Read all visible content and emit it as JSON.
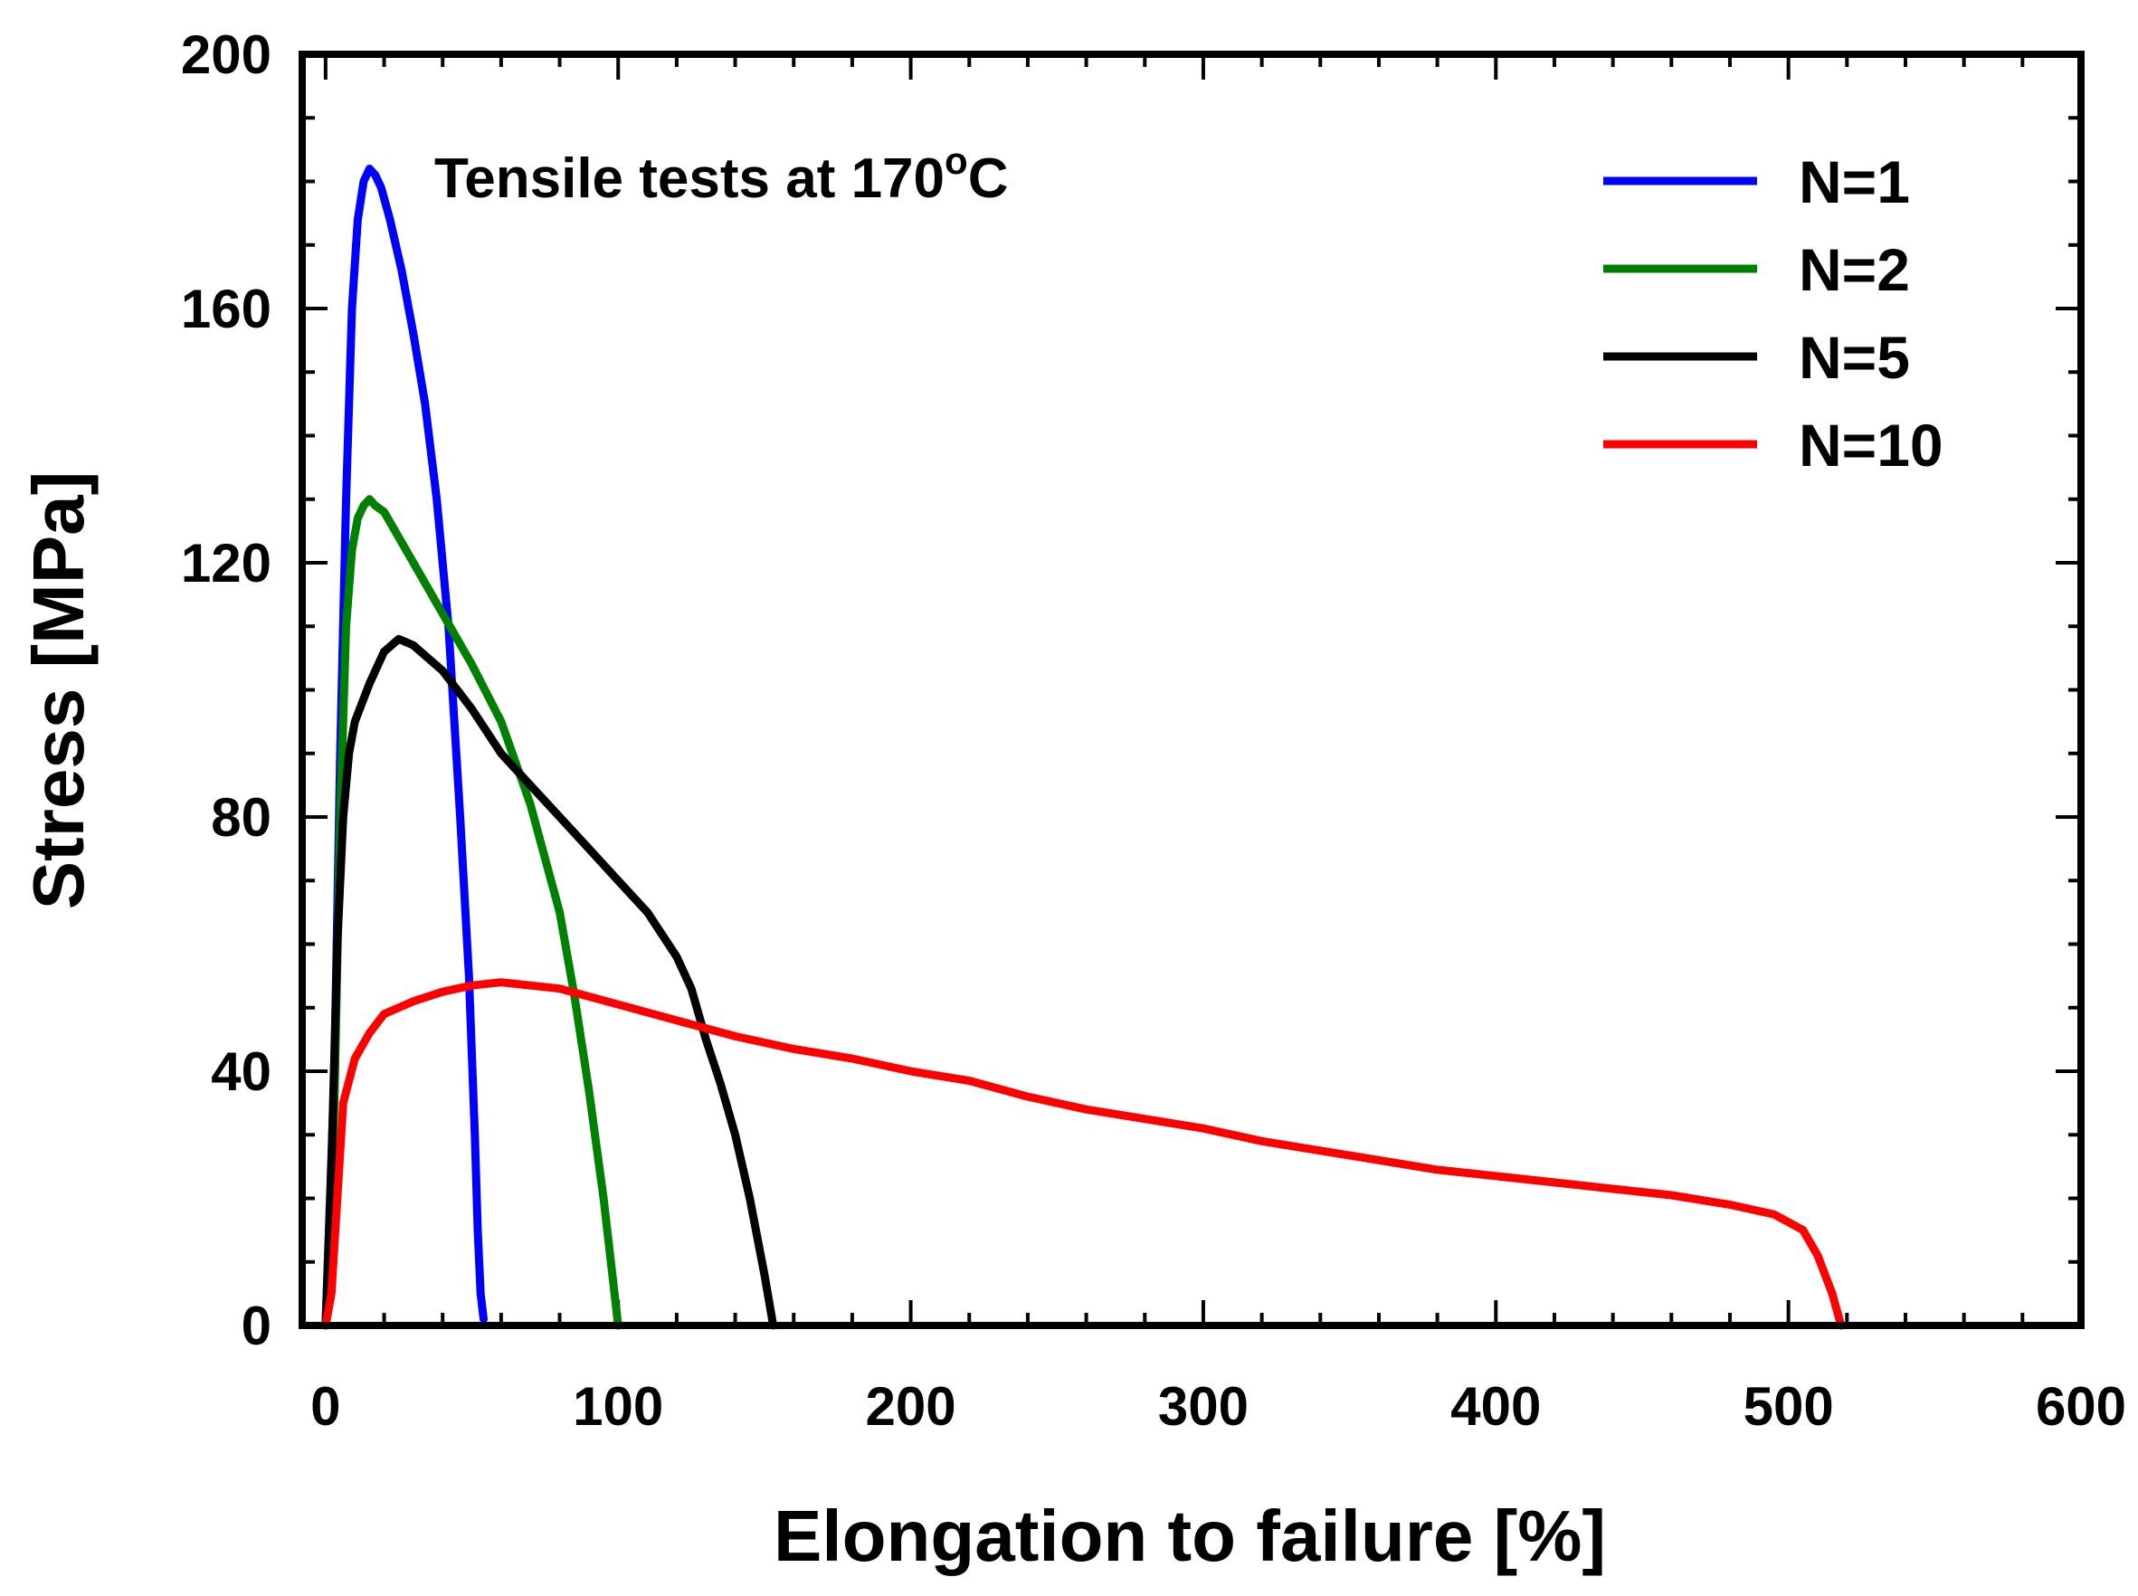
{
  "chart_data": {
    "type": "line",
    "title": "",
    "annotation": {
      "prefix": "Tensile tests at 170",
      "superscript": "o",
      "suffix": "C"
    },
    "xlabel": "Elongation to failure [%]",
    "ylabel": "Stress [MPa]",
    "xlim": [
      -8,
      600
    ],
    "ylim": [
      0,
      200
    ],
    "xticks": [
      0,
      100,
      200,
      300,
      400,
      500,
      600
    ],
    "yticks": [
      0,
      40,
      80,
      120,
      160,
      200
    ],
    "grid": false,
    "legend_position": "top-right",
    "series": [
      {
        "name": "N=1",
        "color": "#0000ff",
        "x": [
          0,
          3,
          5,
          7,
          9,
          11,
          13,
          15,
          17,
          19,
          22,
          26,
          30,
          34,
          38,
          42,
          46,
          49,
          51,
          52,
          53,
          54
        ],
        "y": [
          0,
          40,
          90,
          130,
          160,
          174,
          180,
          182,
          181,
          179,
          174,
          166,
          156,
          145,
          130,
          110,
          80,
          55,
          30,
          15,
          5,
          1
        ]
      },
      {
        "name": "N=2",
        "color": "#008000",
        "x": [
          0,
          3,
          5,
          7,
          9,
          11,
          13,
          15,
          17,
          20,
          25,
          30,
          40,
          50,
          60,
          70,
          80,
          85,
          90,
          95,
          98,
          100
        ],
        "y": [
          0,
          35,
          80,
          110,
          122,
          127,
          129,
          130,
          129,
          128,
          124,
          120,
          112,
          104,
          95,
          82,
          65,
          52,
          37,
          20,
          8,
          0
        ]
      },
      {
        "name": "N=5",
        "color": "#000000",
        "x": [
          0,
          2,
          4,
          6,
          8,
          10,
          15,
          20,
          25,
          30,
          40,
          50,
          60,
          70,
          80,
          90,
          100,
          110,
          120,
          125,
          130,
          135,
          140,
          145,
          150,
          153
        ],
        "y": [
          0,
          25,
          60,
          80,
          90,
          95,
          101,
          106,
          108,
          107,
          103,
          97,
          90,
          85,
          80,
          75,
          70,
          65,
          58,
          53,
          45,
          38,
          30,
          20,
          8,
          0
        ]
      },
      {
        "name": "N=10",
        "color": "#ff0000",
        "x": [
          0,
          2,
          4,
          6,
          10,
          15,
          20,
          30,
          40,
          50,
          60,
          70,
          80,
          100,
          120,
          140,
          160,
          180,
          200,
          220,
          240,
          260,
          280,
          300,
          320,
          340,
          360,
          380,
          400,
          420,
          440,
          460,
          480,
          495,
          505,
          510,
          515,
          518
        ],
        "y": [
          0,
          5,
          20,
          35,
          42,
          46,
          49,
          51,
          52.5,
          53.5,
          54,
          53.5,
          53,
          50.5,
          48,
          45.5,
          43.5,
          42,
          40,
          38.5,
          36,
          34,
          32.5,
          31,
          29,
          27.5,
          26,
          24.5,
          23.5,
          22.5,
          21.5,
          20.5,
          19,
          17.5,
          15,
          11,
          5,
          0
        ]
      }
    ]
  }
}
